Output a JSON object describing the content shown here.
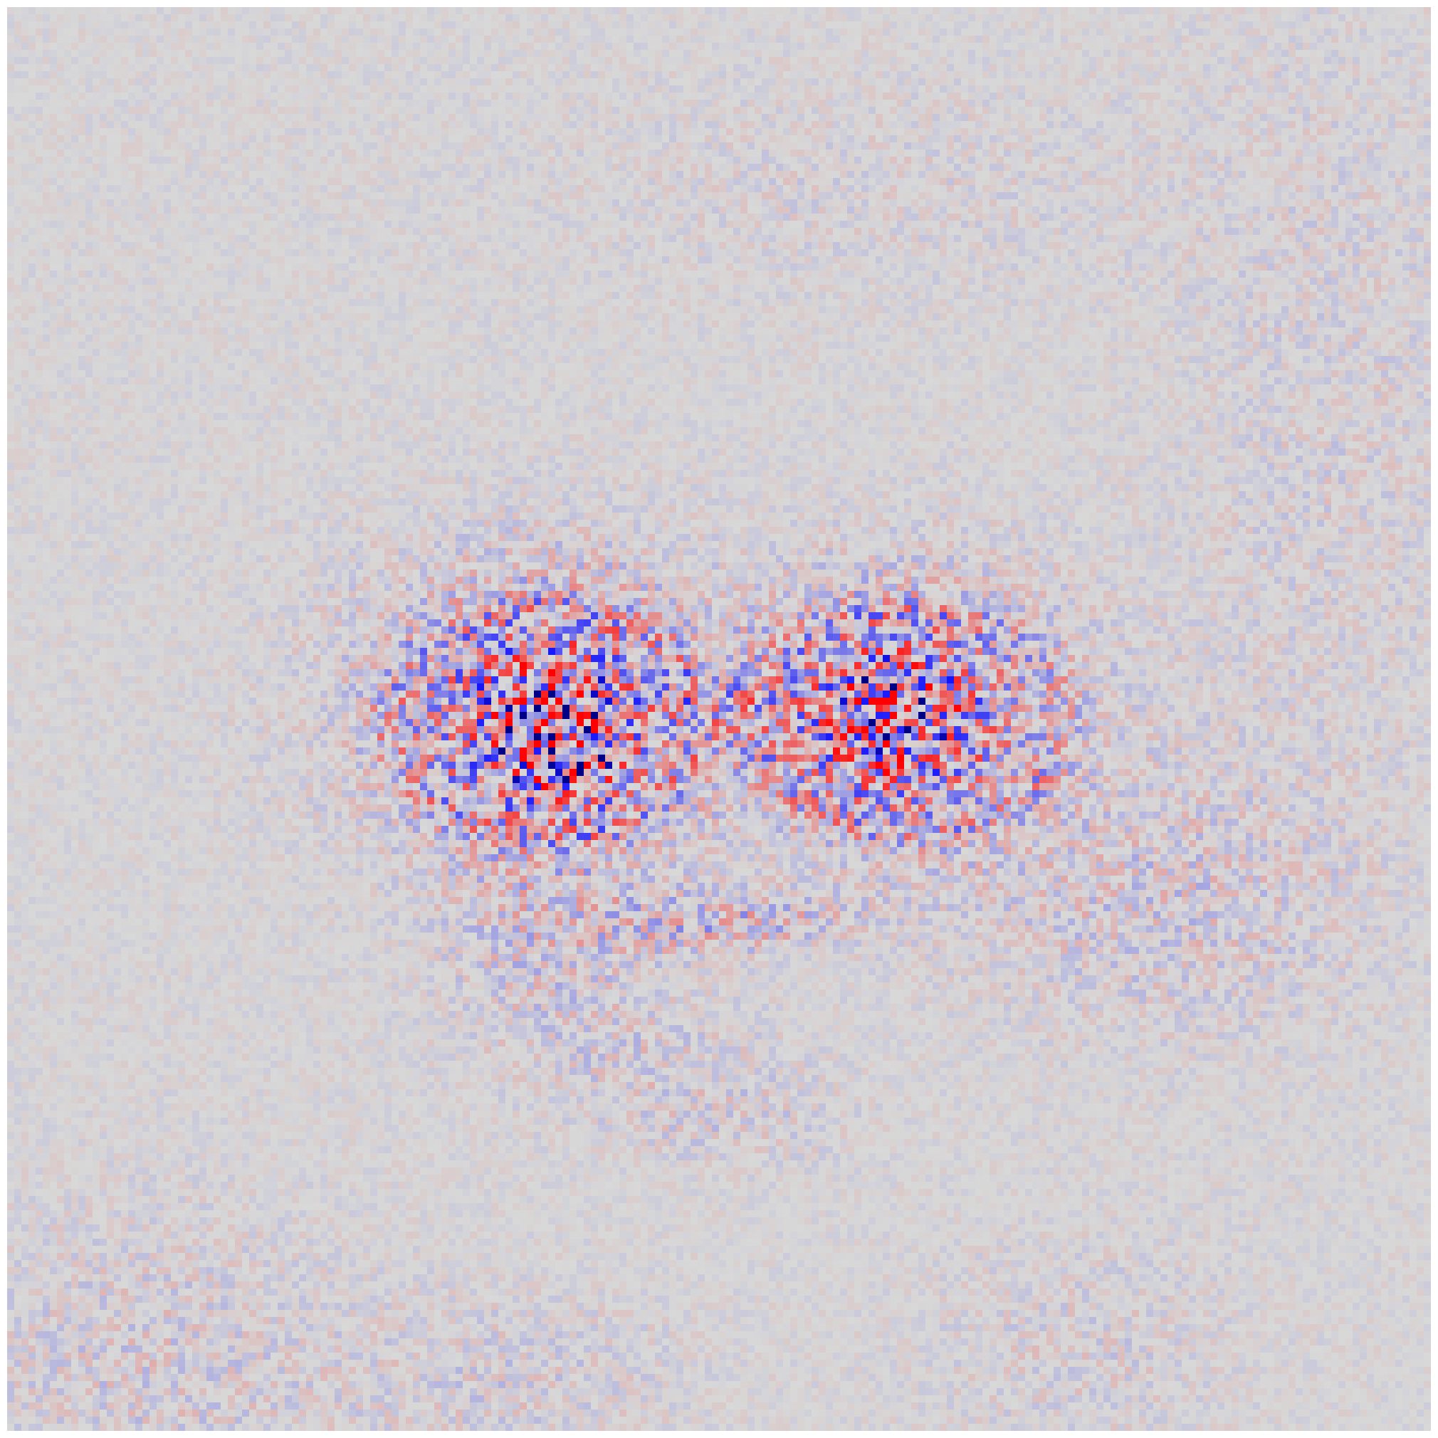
{
  "image": {
    "kind": "attribution heatmap over a face",
    "colormap": {
      "negative": "#0000ff",
      "neutral": "#d8d8d8",
      "positive": "#ff0000"
    },
    "grid_cells": 200
  }
}
